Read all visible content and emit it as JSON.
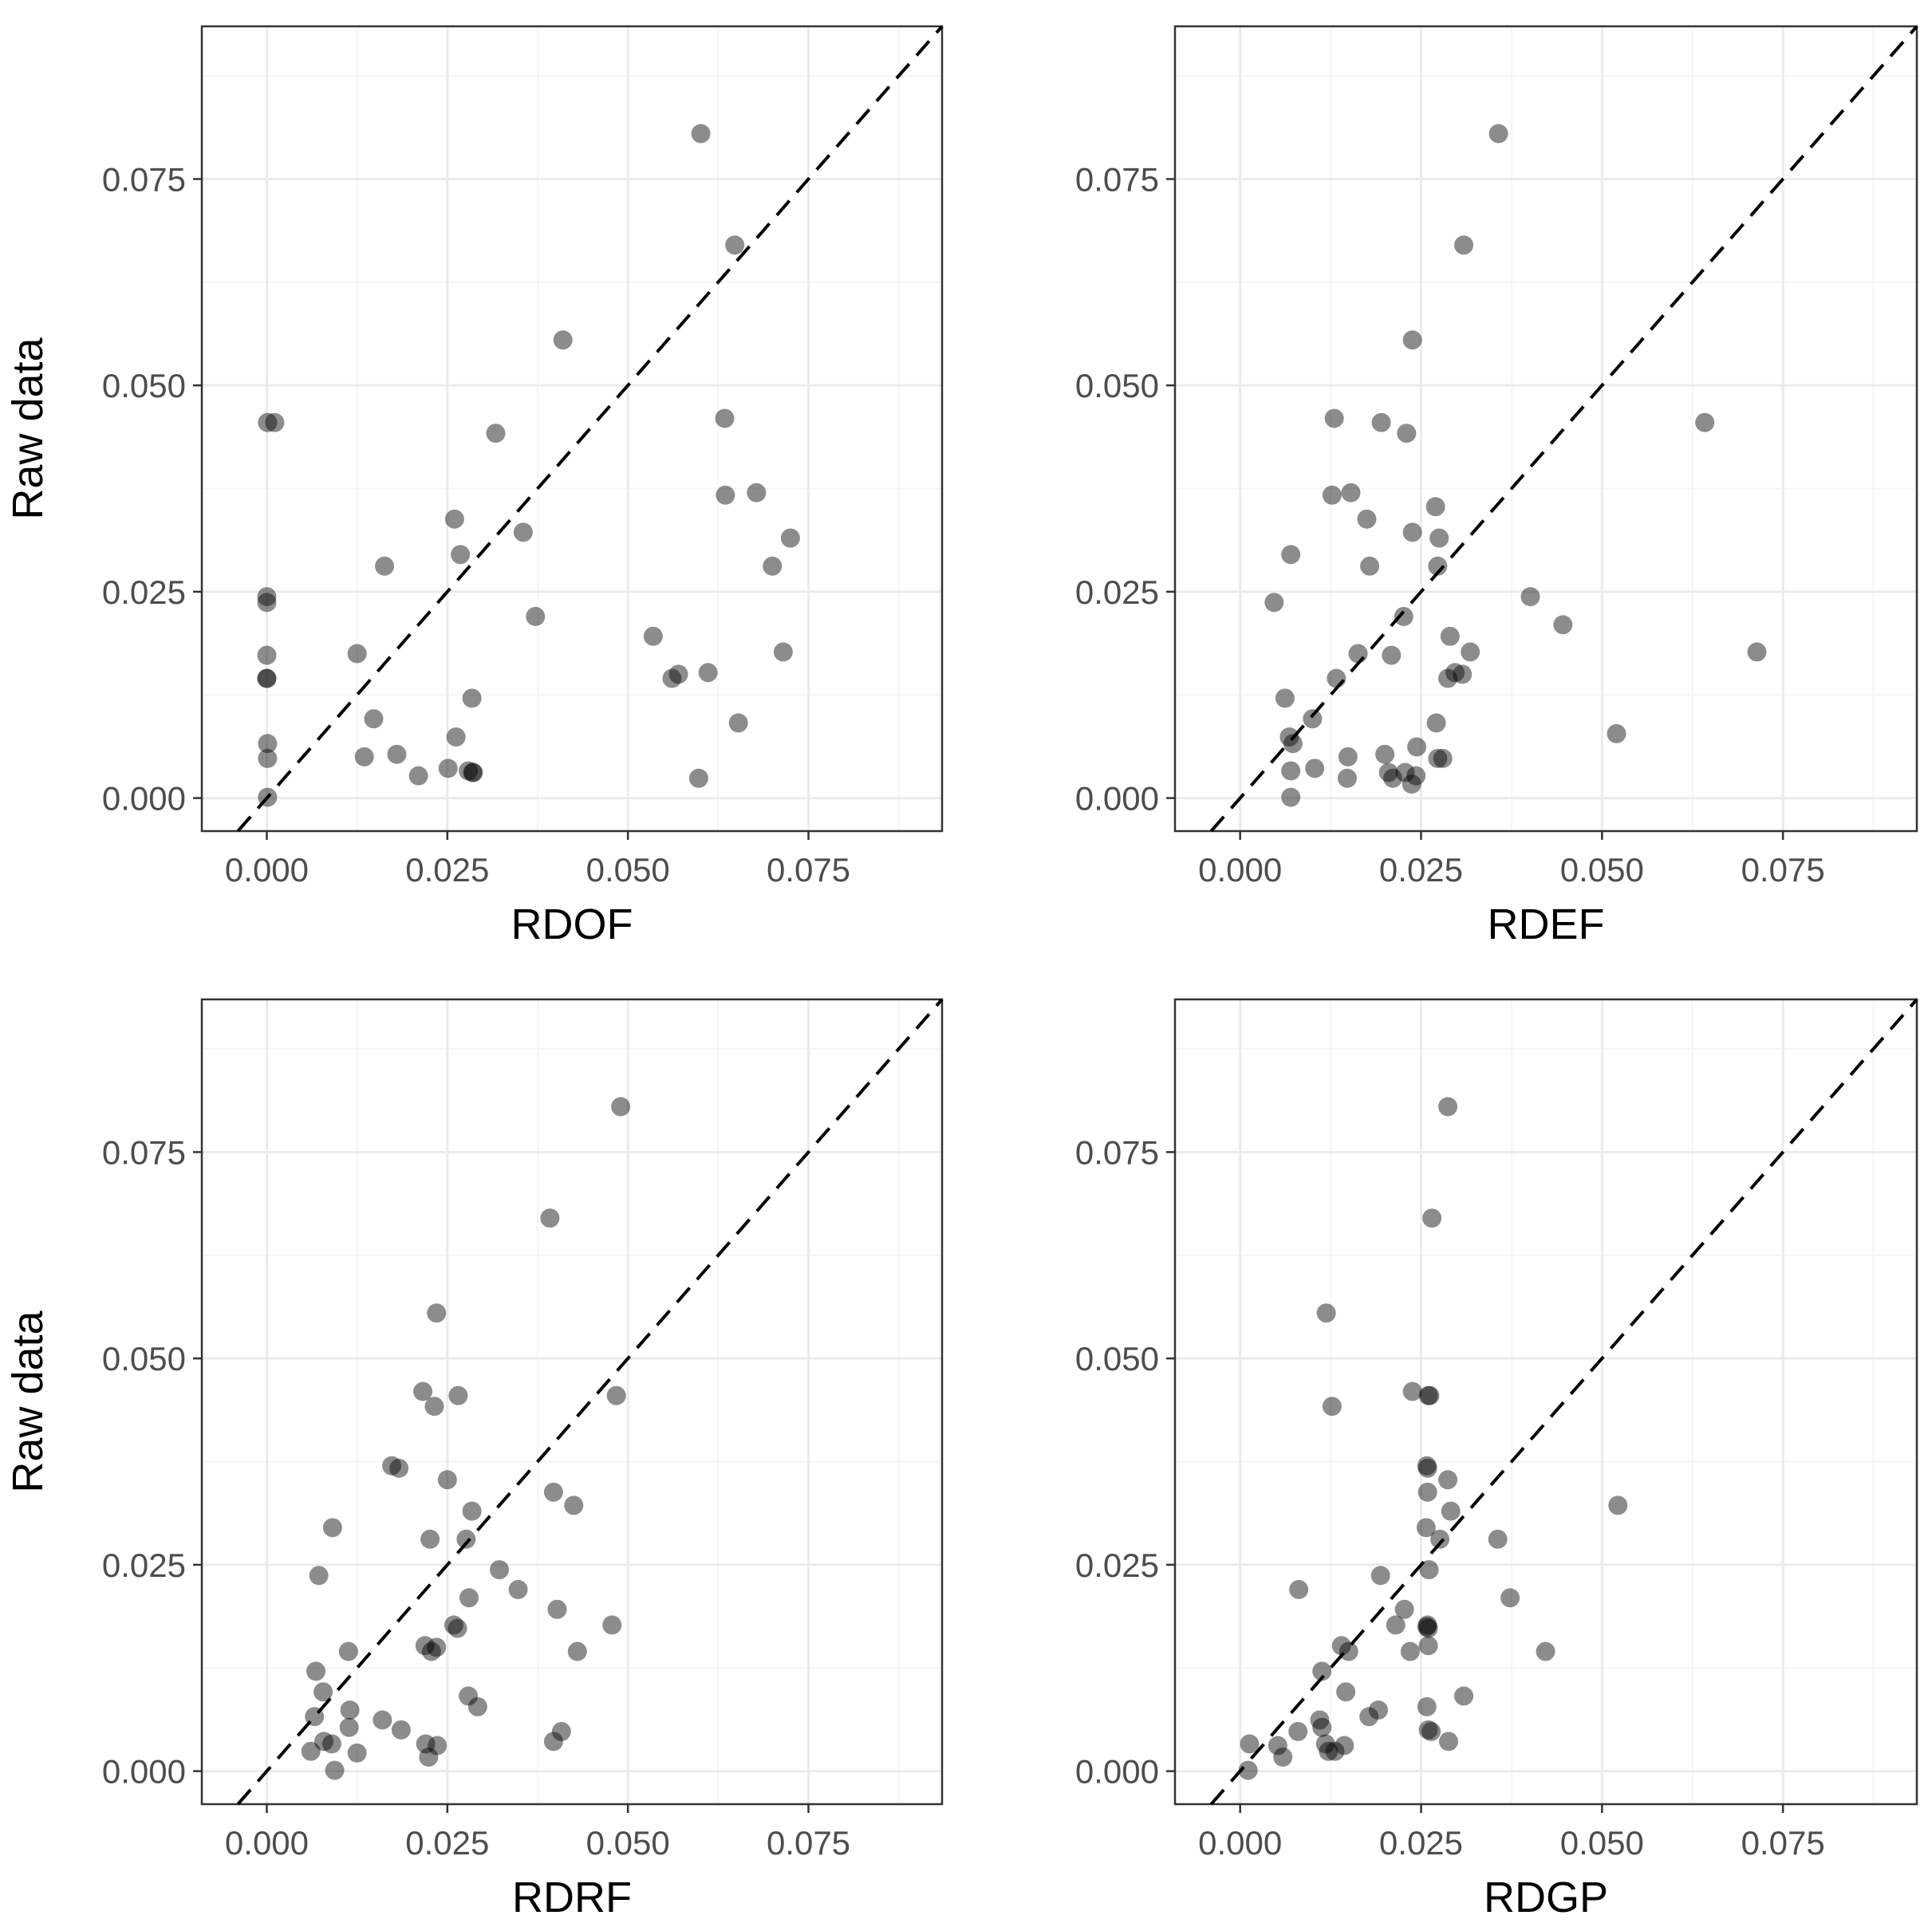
{
  "colors": {
    "point": "#000000",
    "grid_major": "#ebebeb",
    "grid_minor": "#f5f5f5",
    "panel_border": "#333333",
    "tick_text": "#4d4d4d",
    "reference_line": "#000000"
  },
  "chart_data": [
    {
      "type": "scatter",
      "title": "",
      "xlabel": "RDOF",
      "ylabel": "Raw data",
      "xlim": [
        -0.009,
        0.0935
      ],
      "ylim": [
        -0.004,
        0.0935
      ],
      "xticks": [
        "0.000",
        "0.025",
        "0.050",
        "0.075"
      ],
      "yticks": [
        "0.000",
        "0.025",
        "0.050",
        "0.075"
      ],
      "grid": true,
      "reference_line": "y = x (dashed)",
      "x": [
        0.0601,
        0.0648,
        0.041,
        0.0001,
        0.0011,
        0.0634,
        0.0317,
        0.0678,
        0.0635,
        0.026,
        0.0355,
        0.0725,
        0.0268,
        0.0163,
        0.07,
        0.0,
        0.0,
        0.0372,
        0.0535,
        0.0125,
        0.0,
        0.0715,
        0.0,
        0.0,
        0.0611,
        0.057,
        0.0561,
        0.0284,
        0.0148,
        0.0653,
        0.0262,
        0.0001,
        0.018,
        0.0135,
        0.0001,
        0.0251,
        0.0279,
        0.0285,
        0.0286,
        0.021,
        0.0598,
        0.0001
      ],
      "y": [
        0.0805,
        0.067,
        0.0555,
        0.0455,
        0.0455,
        0.046,
        0.0442,
        0.037,
        0.0367,
        0.0338,
        0.0322,
        0.0315,
        0.0295,
        0.0281,
        0.0281,
        0.0244,
        0.0237,
        0.022,
        0.0196,
        0.0175,
        0.0173,
        0.0177,
        0.0145,
        0.0145,
        0.0152,
        0.015,
        0.0145,
        0.0121,
        0.0096,
        0.0091,
        0.0074,
        0.0066,
        0.0053,
        0.005,
        0.0048,
        0.0036,
        0.0033,
        0.0031,
        0.0031,
        0.0027,
        0.0024,
        0.0001
      ]
    },
    {
      "type": "scatter",
      "title": "",
      "xlabel": "RDEF",
      "ylabel": "",
      "xlim": [
        -0.009,
        0.0935
      ],
      "ylim": [
        -0.004,
        0.0935
      ],
      "xticks": [
        "0.000",
        "0.025",
        "0.050",
        "0.075"
      ],
      "yticks": [
        "0.000",
        "0.025",
        "0.050",
        "0.075"
      ],
      "grid": true,
      "reference_line": "y = x (dashed)",
      "x": [
        0.0357,
        0.0309,
        0.0238,
        0.013,
        0.0195,
        0.023,
        0.0642,
        0.0127,
        0.0153,
        0.027,
        0.0175,
        0.0275,
        0.0238,
        0.007,
        0.0179,
        0.0273,
        0.0401,
        0.0047,
        0.0226,
        0.0446,
        0.029,
        0.0163,
        0.0714,
        0.0209,
        0.0318,
        0.0307,
        0.0297,
        0.0287,
        0.0133,
        0.0062,
        0.0271,
        0.01,
        0.052,
        0.0068,
        0.0073,
        0.0244,
        0.02,
        0.0149,
        0.0273,
        0.028,
        0.0103,
        0.007,
        0.0205,
        0.0228,
        0.0243,
        0.0211,
        0.0148,
        0.0237,
        0.007
      ],
      "y": [
        0.0805,
        0.067,
        0.0555,
        0.046,
        0.0455,
        0.0442,
        0.0455,
        0.0367,
        0.037,
        0.0353,
        0.0338,
        0.0315,
        0.0322,
        0.0295,
        0.0281,
        0.0281,
        0.0244,
        0.0237,
        0.022,
        0.021,
        0.0196,
        0.0175,
        0.0177,
        0.0173,
        0.0177,
        0.015,
        0.0152,
        0.0145,
        0.0145,
        0.0121,
        0.0091,
        0.0096,
        0.0078,
        0.0074,
        0.0066,
        0.0062,
        0.0053,
        0.005,
        0.0048,
        0.0048,
        0.0036,
        0.0033,
        0.0031,
        0.0031,
        0.0027,
        0.0024,
        0.0024,
        0.0017,
        0.0001
      ]
    },
    {
      "type": "scatter",
      "title": "",
      "xlabel": "RDRF",
      "ylabel": "Raw data",
      "xlim": [
        -0.009,
        0.0935
      ],
      "ylim": [
        -0.004,
        0.0935
      ],
      "xticks": [
        "0.000",
        "0.025",
        "0.050",
        "0.075"
      ],
      "yticks": [
        "0.000",
        "0.025",
        "0.050",
        "0.075"
      ],
      "grid": true,
      "reference_line": "y = x (dashed)",
      "x": [
        0.049,
        0.0392,
        0.0235,
        0.0216,
        0.0265,
        0.0232,
        0.0484,
        0.0173,
        0.0183,
        0.025,
        0.0397,
        0.0284,
        0.0425,
        0.0091,
        0.0226,
        0.0276,
        0.0072,
        0.0322,
        0.0348,
        0.028,
        0.0402,
        0.0259,
        0.0264,
        0.0478,
        0.0219,
        0.0235,
        0.043,
        0.0228,
        0.0113,
        0.0068,
        0.0078,
        0.0279,
        0.0292,
        0.0066,
        0.016,
        0.0115,
        0.0186,
        0.0114,
        0.0408,
        0.0397,
        0.0079,
        0.009,
        0.022,
        0.0236,
        0.0061,
        0.0125,
        0.0224,
        0.0094
      ],
      "y": [
        0.0805,
        0.067,
        0.0555,
        0.046,
        0.0455,
        0.0442,
        0.0455,
        0.037,
        0.0367,
        0.0353,
        0.0338,
        0.0315,
        0.0322,
        0.0295,
        0.0281,
        0.0281,
        0.0237,
        0.0244,
        0.022,
        0.021,
        0.0196,
        0.0177,
        0.0173,
        0.0177,
        0.0152,
        0.015,
        0.0145,
        0.0145,
        0.0145,
        0.0121,
        0.0096,
        0.0091,
        0.0078,
        0.0066,
        0.0062,
        0.0074,
        0.005,
        0.0053,
        0.0048,
        0.0036,
        0.0036,
        0.0033,
        0.0033,
        0.0031,
        0.0024,
        0.0022,
        0.0017,
        0.0001
      ]
    },
    {
      "type": "scatter",
      "title": "",
      "xlabel": "RDGP",
      "ylabel": "",
      "xlim": [
        -0.009,
        0.0935
      ],
      "ylim": [
        -0.004,
        0.0935
      ],
      "xticks": [
        "0.000",
        "0.025",
        "0.050",
        "0.075"
      ],
      "yticks": [
        "0.000",
        "0.025",
        "0.050",
        "0.075"
      ],
      "grid": true,
      "reference_line": "y = x (dashed)",
      "x": [
        0.0287,
        0.0265,
        0.0119,
        0.0238,
        0.026,
        0.0262,
        0.0127,
        0.0258,
        0.0259,
        0.0287,
        0.0259,
        0.0291,
        0.0257,
        0.0356,
        0.0276,
        0.0261,
        0.0194,
        0.0081,
        0.0373,
        0.0227,
        0.0522,
        0.0215,
        0.0259,
        0.0258,
        0.026,
        0.014,
        0.0235,
        0.015,
        0.0422,
        0.026,
        0.0113,
        0.0146,
        0.0309,
        0.0258,
        0.0191,
        0.0178,
        0.011,
        0.0113,
        0.026,
        0.0264,
        0.008,
        0.0288,
        0.0118,
        0.0144,
        0.0013,
        0.0052,
        0.0122,
        0.0131,
        0.0059,
        0.0011
      ],
      "y": [
        0.0805,
        0.067,
        0.0555,
        0.046,
        0.0455,
        0.0455,
        0.0442,
        0.037,
        0.0367,
        0.0353,
        0.0338,
        0.0315,
        0.0295,
        0.0281,
        0.0281,
        0.0244,
        0.0237,
        0.022,
        0.021,
        0.0196,
        0.0322,
        0.0177,
        0.0177,
        0.0175,
        0.0173,
        0.0152,
        0.0145,
        0.0145,
        0.0145,
        0.0152,
        0.0121,
        0.0096,
        0.0091,
        0.0078,
        0.0074,
        0.0066,
        0.0062,
        0.0053,
        0.005,
        0.0048,
        0.0048,
        0.0036,
        0.0033,
        0.0031,
        0.0033,
        0.0031,
        0.0024,
        0.0024,
        0.0017,
        0.0001
      ]
    }
  ]
}
